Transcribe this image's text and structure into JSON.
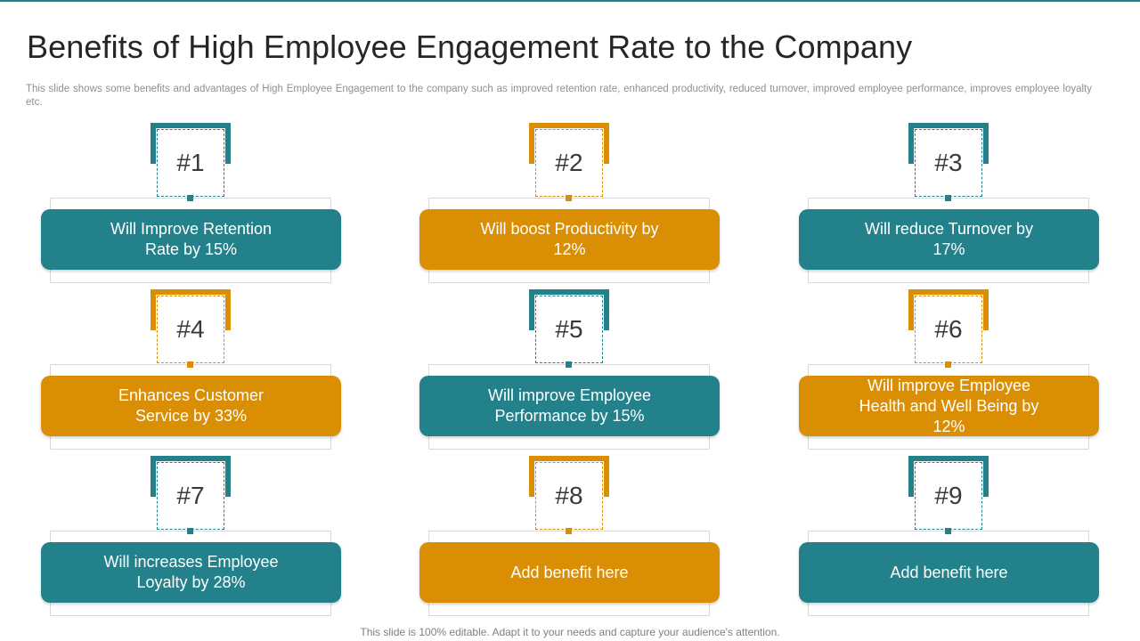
{
  "title": "Benefits of High Employee Engagement Rate to the Company",
  "subtitle": "This slide shows some benefits and advantages of High Employee Engagement to the company such as improved retention rate, enhanced productivity, reduced turnover, improved employee performance, improves employee loyalty etc.",
  "colors": {
    "teal": "#23818b",
    "orange": "#d98e04"
  },
  "benefits": [
    {
      "number": "#1",
      "text": "Will Improve Retention Rate by 15%",
      "color": "teal"
    },
    {
      "number": "#2",
      "text": "Will boost Productivity by 12%",
      "color": "orange"
    },
    {
      "number": "#3",
      "text": "Will reduce Turnover by 17%",
      "color": "teal"
    },
    {
      "number": "#4",
      "text": "Enhances Customer Service by 33%",
      "color": "orange"
    },
    {
      "number": "#5",
      "text": "Will improve Employee Performance by 15%",
      "color": "teal"
    },
    {
      "number": "#6",
      "text": "Will improve Employee Health and Well Being by 12%",
      "color": "orange"
    },
    {
      "number": "#7",
      "text": "Will increases Employee Loyalty by 28%",
      "color": "teal"
    },
    {
      "number": "#8",
      "text": "Add benefit here",
      "color": "orange"
    },
    {
      "number": "#9",
      "text": "Add benefit here",
      "color": "teal"
    }
  ],
  "footer": "This slide is 100% editable. Adapt it to your needs and capture your audience's attention."
}
